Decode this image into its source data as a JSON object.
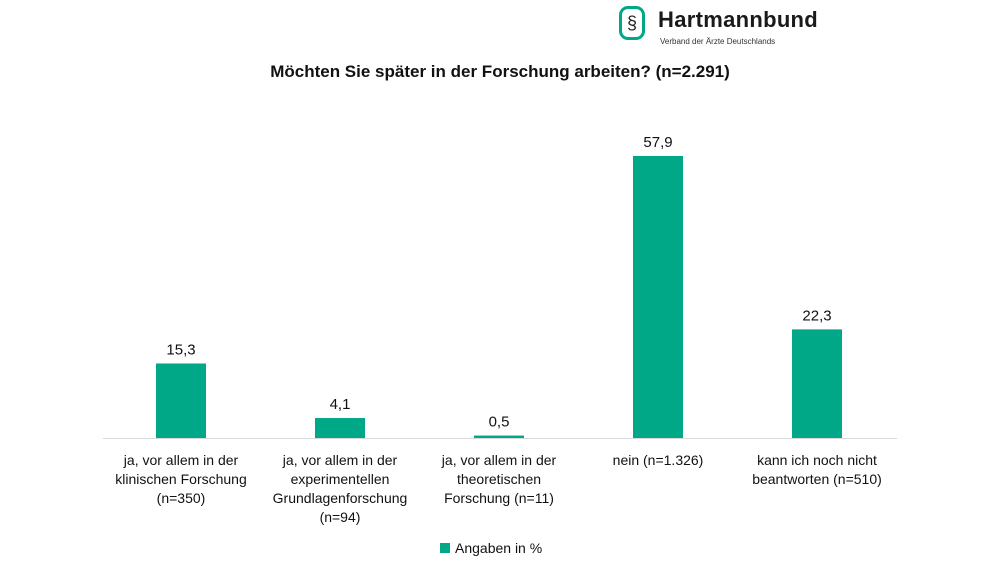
{
  "logo": {
    "name": "Hartmannbund",
    "subtitle": "Verband der Ärzte Deutschlands",
    "icon": "caduceus-icon"
  },
  "colors": {
    "bar": "#00a887",
    "axis": "#d9d9d9"
  },
  "chart_data": {
    "type": "bar",
    "title": "Möchten Sie später in der Forschung arbeiten? (n=2.291)",
    "categories": [
      [
        "ja, vor allem in der",
        "klinischen Forschung",
        "(n=350)"
      ],
      [
        "ja, vor allem in der",
        "experimentellen",
        "Grundlagenforschung",
        "(n=94)"
      ],
      [
        "ja, vor allem in der",
        "theoretischen",
        "Forschung (n=11)"
      ],
      [
        "nein (n=1.326)"
      ],
      [
        "kann ich noch nicht",
        "beantworten (n=510)"
      ]
    ],
    "series": [
      {
        "name": "Angaben in %",
        "values": [
          15.3,
          4.1,
          0.5,
          57.9,
          22.3
        ]
      }
    ],
    "value_labels": [
      "15,3",
      "4,1",
      "0,5",
      "57,9",
      "22,3"
    ],
    "legend": {
      "position": "bottom",
      "label": "Angaben in %"
    },
    "ylim": [
      0,
      60
    ],
    "grid": false
  }
}
